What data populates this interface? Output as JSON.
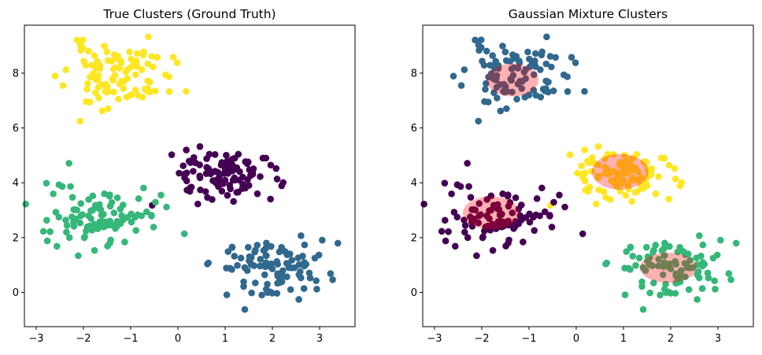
{
  "figure": {
    "background": "#ffffff"
  },
  "chart_data": [
    {
      "type": "scatter",
      "title": "True Clusters (Ground Truth)",
      "xlim": [
        -3.25,
        3.75
      ],
      "ylim": [
        -1.25,
        9.75
      ],
      "xticks": [
        -3,
        -2,
        -1,
        0,
        1,
        2,
        3
      ],
      "yticks": [
        0,
        2,
        4,
        6,
        8
      ],
      "grid": false,
      "series": [
        {
          "color": "#fde725",
          "center": [
            -1.3,
            7.9
          ],
          "spread": [
            0.55,
            0.58
          ],
          "count": 100,
          "seed": 11
        },
        {
          "color": "#440154",
          "center": [
            0.95,
            4.3
          ],
          "spread": [
            0.58,
            0.5
          ],
          "count": 100,
          "seed": 23
        },
        {
          "color": "#35b779",
          "center": [
            -1.6,
            2.85
          ],
          "spread": [
            0.6,
            0.6
          ],
          "count": 100,
          "seed": 37
        },
        {
          "color": "#31688e",
          "center": [
            1.98,
            0.87
          ],
          "spread": [
            0.62,
            0.52
          ],
          "count": 100,
          "seed": 53
        }
      ]
    },
    {
      "type": "scatter",
      "title": "Gaussian Mixture Clusters",
      "xlim": [
        -3.25,
        3.75
      ],
      "ylim": [
        -1.25,
        9.75
      ],
      "xticks": [
        -3,
        -2,
        -1,
        0,
        1,
        2,
        3
      ],
      "yticks": [
        0,
        2,
        4,
        6,
        8
      ],
      "grid": false,
      "series": [
        {
          "color": "#31688e",
          "center": [
            -1.3,
            7.9
          ],
          "spread": [
            0.55,
            0.58
          ],
          "count": 100,
          "seed": 11
        },
        {
          "color": "#fde725",
          "center": [
            0.95,
            4.3
          ],
          "spread": [
            0.58,
            0.5
          ],
          "count": 100,
          "seed": 23
        },
        {
          "color": "#440154",
          "center": [
            -1.6,
            2.85
          ],
          "spread": [
            0.6,
            0.6
          ],
          "count": 100,
          "seed": 37
        },
        {
          "color": "#35b779",
          "center": [
            1.98,
            0.87
          ],
          "spread": [
            0.62,
            0.52
          ],
          "count": 100,
          "seed": 53
        }
      ],
      "ellipses": [
        {
          "center": [
            -1.35,
            7.75
          ],
          "width": 1.1,
          "height": 1.2,
          "color": "#ff0000",
          "alpha": 0.3
        },
        {
          "center": [
            0.93,
            4.4
          ],
          "width": 1.2,
          "height": 1.3,
          "color": "#ff0000",
          "alpha": 0.3
        },
        {
          "center": [
            -1.8,
            2.9
          ],
          "width": 1.2,
          "height": 1.2,
          "color": "#ff0000",
          "alpha": 0.3
        },
        {
          "center": [
            1.95,
            0.9
          ],
          "width": 1.2,
          "height": 1.1,
          "color": "#ff0000",
          "alpha": 0.3
        }
      ]
    }
  ]
}
